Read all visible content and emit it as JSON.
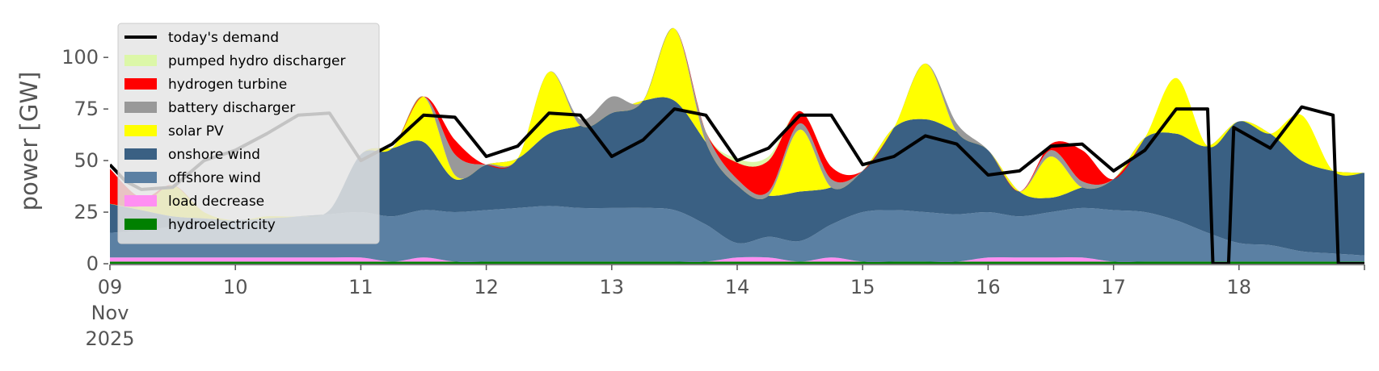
{
  "chart_data": {
    "type": "area",
    "ylabel": "power [GW]",
    "ylim": [
      0,
      120
    ],
    "yticks": [
      0,
      25,
      50,
      75,
      100
    ],
    "xlim": [
      "2025-11-09T00:00",
      "2025-11-19T00:00"
    ],
    "x_ticks": [
      {
        "x": "2025-11-09",
        "lines": [
          "09",
          "Nov",
          "2025"
        ]
      },
      {
        "x": "2025-11-10",
        "lines": [
          "10"
        ]
      },
      {
        "x": "2025-11-11",
        "lines": [
          "11"
        ]
      },
      {
        "x": "2025-11-12",
        "lines": [
          "12"
        ]
      },
      {
        "x": "2025-11-13",
        "lines": [
          "13"
        ]
      },
      {
        "x": "2025-11-14",
        "lines": [
          "14"
        ]
      },
      {
        "x": "2025-11-15",
        "lines": [
          "15"
        ]
      },
      {
        "x": "2025-11-16",
        "lines": [
          "16"
        ]
      },
      {
        "x": "2025-11-17",
        "lines": [
          "17"
        ]
      },
      {
        "x": "2025-11-18",
        "lines": [
          "18"
        ]
      }
    ],
    "grid": false,
    "legend_position": "top-left",
    "x": [
      "2025-11-09T00:00",
      "2025-11-09T06:00",
      "2025-11-09T12:00",
      "2025-11-09T18:00",
      "2025-11-10T00:00",
      "2025-11-10T06:00",
      "2025-11-10T12:00",
      "2025-11-10T18:00",
      "2025-11-11T00:00",
      "2025-11-11T06:00",
      "2025-11-11T12:00",
      "2025-11-11T18:00",
      "2025-11-12T00:00",
      "2025-11-12T06:00",
      "2025-11-12T12:00",
      "2025-11-12T18:00",
      "2025-11-13T00:00",
      "2025-11-13T06:00",
      "2025-11-13T12:00",
      "2025-11-13T18:00",
      "2025-11-14T00:00",
      "2025-11-14T06:00",
      "2025-11-14T12:00",
      "2025-11-14T18:00",
      "2025-11-15T00:00",
      "2025-11-15T06:00",
      "2025-11-15T12:00",
      "2025-11-15T18:00",
      "2025-11-16T00:00",
      "2025-11-16T06:00",
      "2025-11-16T12:00",
      "2025-11-16T18:00",
      "2025-11-17T00:00",
      "2025-11-17T06:00",
      "2025-11-17T12:00",
      "2025-11-17T18:00",
      "2025-11-18T00:00",
      "2025-11-18T06:00",
      "2025-11-18T12:00",
      "2025-11-18T18:00",
      "2025-11-19T00:00"
    ],
    "series": [
      {
        "name": "hydroelectricity",
        "color": "#008000",
        "values": [
          1,
          1,
          1,
          1,
          1,
          1,
          1,
          1,
          1,
          1,
          1,
          1,
          1,
          1,
          1,
          1,
          1,
          1,
          1,
          1,
          1,
          1,
          1,
          1,
          1,
          1,
          1,
          1,
          1,
          1,
          1,
          1,
          1,
          1,
          1,
          1,
          1,
          1,
          1,
          1,
          1
        ]
      },
      {
        "name": "load decrease",
        "color": "#ff8ff2",
        "values": [
          2,
          2,
          2,
          2,
          2,
          2,
          2,
          2,
          2,
          0,
          2,
          0,
          0,
          0,
          0,
          0,
          0,
          0,
          0,
          0,
          2,
          2,
          0,
          2,
          0,
          0,
          0,
          0,
          2,
          2,
          2,
          2,
          0,
          0,
          0,
          0,
          0,
          0,
          0,
          0,
          0
        ]
      },
      {
        "name": "offshore wind",
        "color": "#5b80a3",
        "values": [
          12,
          13,
          15,
          17,
          18,
          19,
          20,
          21,
          22,
          22,
          23,
          24,
          25,
          26,
          27,
          26,
          26,
          26,
          25,
          18,
          7,
          10,
          10,
          16,
          24,
          25,
          24,
          23,
          22,
          20,
          22,
          24,
          25,
          24,
          20,
          14,
          9,
          8,
          5,
          4,
          3
        ]
      },
      {
        "name": "onshore wind",
        "color": "#3a6083",
        "values": [
          14,
          10,
          5,
          2,
          0,
          0,
          0,
          2,
          28,
          33,
          33,
          16,
          22,
          24,
          35,
          40,
          46,
          52,
          53,
          40,
          28,
          20,
          24,
          18,
          20,
          40,
          45,
          40,
          30,
          12,
          7,
          10,
          15,
          36,
          42,
          42,
          59,
          54,
          44,
          40,
          40
        ]
      },
      {
        "name": "solar PV",
        "color": "#ffff00",
        "values": [
          0,
          2,
          15,
          3,
          0,
          1,
          0,
          0,
          0,
          0,
          22,
          2,
          0,
          0,
          30,
          0,
          0,
          0,
          35,
          0,
          0,
          0,
          30,
          0,
          0,
          0,
          27,
          0,
          0,
          0,
          20,
          0,
          0,
          0,
          27,
          0,
          0,
          0,
          22,
          0,
          0
        ]
      },
      {
        "name": "battery discharger",
        "color": "#999999",
        "values": [
          0,
          0,
          0,
          0,
          0,
          0,
          0,
          0,
          0,
          0,
          0,
          10,
          0,
          0,
          0,
          3,
          8,
          0,
          0,
          5,
          3,
          2,
          3,
          4,
          0,
          0,
          0,
          4,
          0,
          0,
          3,
          3,
          0,
          0,
          0,
          0,
          0,
          0,
          0,
          0,
          0
        ]
      },
      {
        "name": "hydrogen turbine",
        "color": "#ff0000",
        "values": [
          17,
          4,
          0,
          0,
          0,
          0,
          0,
          0,
          0,
          0,
          0,
          7,
          0,
          0,
          0,
          0,
          0,
          0,
          0,
          0,
          8,
          15,
          6,
          6,
          0,
          0,
          0,
          0,
          0,
          0,
          3,
          15,
          0,
          0,
          0,
          0,
          0,
          0,
          0,
          0,
          0
        ]
      },
      {
        "name": "pumped hydro discharger",
        "color": "#dcf7a8",
        "values": [
          0,
          0,
          0,
          0,
          0,
          0,
          0,
          0,
          0,
          0,
          0,
          0,
          0,
          0,
          0,
          0,
          0,
          0,
          0,
          0,
          2,
          2,
          0,
          0,
          0,
          0,
          0,
          0,
          0,
          0,
          0,
          0,
          0,
          0,
          0,
          0,
          0,
          0,
          0,
          0,
          0
        ]
      }
    ],
    "demand": {
      "name": "today's demand",
      "color": "#000000",
      "points": [
        [
          "2025-11-09T00:00",
          48
        ],
        [
          "2025-11-09T03:00",
          40
        ],
        [
          "2025-11-09T06:00",
          36
        ],
        [
          "2025-11-09T12:00",
          37
        ],
        [
          "2025-11-09T18:00",
          50
        ],
        [
          "2025-11-10T00:00",
          55
        ],
        [
          "2025-11-10T06:00",
          63
        ],
        [
          "2025-11-10T12:00",
          72
        ],
        [
          "2025-11-10T18:00",
          73
        ],
        [
          "2025-11-11T00:00",
          50
        ],
        [
          "2025-11-11T06:00",
          58
        ],
        [
          "2025-11-11T12:00",
          72
        ],
        [
          "2025-11-11T18:00",
          71
        ],
        [
          "2025-11-12T00:00",
          52
        ],
        [
          "2025-11-12T06:00",
          57
        ],
        [
          "2025-11-12T12:00",
          73
        ],
        [
          "2025-11-12T18:00",
          72
        ],
        [
          "2025-11-13T00:00",
          52
        ],
        [
          "2025-11-13T06:00",
          60
        ],
        [
          "2025-11-13T12:00",
          75
        ],
        [
          "2025-11-13T18:00",
          72
        ],
        [
          "2025-11-14T00:00",
          50
        ],
        [
          "2025-11-14T06:00",
          56
        ],
        [
          "2025-11-14T12:00",
          72
        ],
        [
          "2025-11-14T18:00",
          72
        ],
        [
          "2025-11-15T00:00",
          48
        ],
        [
          "2025-11-15T06:00",
          52
        ],
        [
          "2025-11-15T12:00",
          62
        ],
        [
          "2025-11-15T18:00",
          58
        ],
        [
          "2025-11-16T00:00",
          43
        ],
        [
          "2025-11-16T06:00",
          45
        ],
        [
          "2025-11-16T12:00",
          57
        ],
        [
          "2025-11-16T18:00",
          58
        ],
        [
          "2025-11-17T00:00",
          45
        ],
        [
          "2025-11-17T06:00",
          55
        ],
        [
          "2025-11-17T12:00",
          75
        ],
        [
          "2025-11-17T18:00",
          75
        ],
        [
          "2025-11-17T19:00",
          0
        ],
        [
          "2025-11-17T22:00",
          0
        ],
        [
          "2025-11-17T23:00",
          66
        ],
        [
          "2025-11-18T06:00",
          56
        ],
        [
          "2025-11-18T12:00",
          76
        ],
        [
          "2025-11-18T18:00",
          72
        ],
        [
          "2025-11-18T19:00",
          0
        ],
        [
          "2025-11-19T00:00",
          0
        ]
      ]
    },
    "legend": [
      {
        "label": "today's demand",
        "color": "#000000",
        "kind": "line"
      },
      {
        "label": "pumped hydro discharger",
        "color": "#dcf7a8",
        "kind": "patch"
      },
      {
        "label": "hydrogen turbine",
        "color": "#ff0000",
        "kind": "patch"
      },
      {
        "label": "battery discharger",
        "color": "#999999",
        "kind": "patch"
      },
      {
        "label": "solar PV",
        "color": "#ffff00",
        "kind": "patch"
      },
      {
        "label": "onshore wind",
        "color": "#3a6083",
        "kind": "patch"
      },
      {
        "label": "offshore wind",
        "color": "#5b80a3",
        "kind": "patch"
      },
      {
        "label": "load decrease",
        "color": "#ff8ff2",
        "kind": "patch"
      },
      {
        "label": "hydroelectricity",
        "color": "#008000",
        "kind": "patch"
      }
    ]
  }
}
